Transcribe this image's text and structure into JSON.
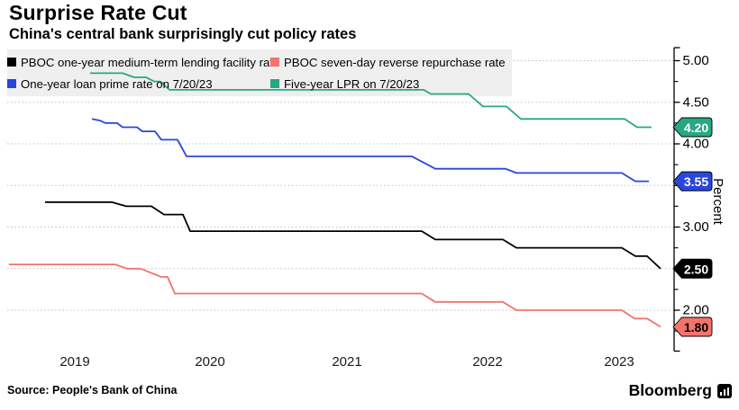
{
  "header": {
    "title": "Surprise Rate Cut",
    "subtitle": "China's central bank surprisingly cut policy rates"
  },
  "footer": {
    "source": "Source: People's Bank of China",
    "brand": "Bloomberg"
  },
  "chart_data": {
    "type": "line",
    "title": "Surprise Rate Cut",
    "subtitle": "China's central bank surprisingly cut policy rates",
    "ylabel": "Percent",
    "ylim": [
      1.5,
      5.15
    ],
    "grid": "dotted horizontal gridlines at major ticks",
    "legend_position": "top-left, two columns, gray box",
    "y_ticks_major": [
      5.0,
      4.5,
      4.0,
      3.5,
      3.0,
      2.5,
      2.0
    ],
    "y_ticks_minor": [
      4.75,
      4.25,
      3.75,
      3.25,
      2.75,
      2.25,
      1.75
    ],
    "x_tick_labels": [
      {
        "label": "2019",
        "x": 83
      },
      {
        "label": "2020",
        "x": 233
      },
      {
        "label": "2021",
        "x": 385
      },
      {
        "label": "2022",
        "x": 541
      },
      {
        "label": "2023",
        "x": 687
      }
    ],
    "series": [
      {
        "name": "PBOC one-year medium-term lending facility rate",
        "color": "#000000",
        "badge": {
          "label": "2.50",
          "text_color": "#ffffff"
        },
        "points": [
          [
            50,
            3.3
          ],
          [
            124,
            3.3
          ],
          [
            140,
            3.25
          ],
          [
            168,
            3.25
          ],
          [
            182,
            3.15
          ],
          [
            203,
            3.15
          ],
          [
            211,
            2.95
          ],
          [
            468,
            2.95
          ],
          [
            483,
            2.85
          ],
          [
            558,
            2.85
          ],
          [
            573,
            2.75
          ],
          [
            690,
            2.75
          ],
          [
            705,
            2.65
          ],
          [
            718,
            2.65
          ],
          [
            733,
            2.5
          ]
        ]
      },
      {
        "name": "PBOC seven-day reverse repurchase rate",
        "color": "#F3736D",
        "badge": {
          "label": "1.80",
          "text_color": "#000000"
        },
        "points": [
          [
            10,
            2.55
          ],
          [
            128,
            2.55
          ],
          [
            141,
            2.5
          ],
          [
            156,
            2.5
          ],
          [
            179,
            2.4
          ],
          [
            186,
            2.4
          ],
          [
            194,
            2.2
          ],
          [
            468,
            2.2
          ],
          [
            483,
            2.1
          ],
          [
            558,
            2.1
          ],
          [
            573,
            2.0
          ],
          [
            690,
            2.0
          ],
          [
            704,
            1.9
          ],
          [
            718,
            1.9
          ],
          [
            733,
            1.8
          ]
        ]
      },
      {
        "name": "One-year loan prime rate on 7/20/23",
        "color": "#2946DB",
        "badge": {
          "label": "3.55",
          "text_color": "#ffffff"
        },
        "points": [
          [
            102,
            4.3
          ],
          [
            111,
            4.28
          ],
          [
            117,
            4.25
          ],
          [
            130,
            4.25
          ],
          [
            136,
            4.2
          ],
          [
            152,
            4.2
          ],
          [
            158,
            4.15
          ],
          [
            172,
            4.15
          ],
          [
            179,
            4.05
          ],
          [
            197,
            4.05
          ],
          [
            207,
            3.85
          ],
          [
            457,
            3.85
          ],
          [
            483,
            3.7
          ],
          [
            561,
            3.7
          ],
          [
            573,
            3.65
          ],
          [
            690,
            3.65
          ],
          [
            705,
            3.55
          ],
          [
            720,
            3.55
          ]
        ]
      },
      {
        "name": "Five-year LPR on 7/20/23",
        "color": "#27A883",
        "badge": {
          "label": "4.20",
          "text_color": "#ffffff"
        },
        "points": [
          [
            100,
            4.85
          ],
          [
            136,
            4.85
          ],
          [
            149,
            4.8
          ],
          [
            162,
            4.8
          ],
          [
            171,
            4.75
          ],
          [
            178,
            4.75
          ],
          [
            188,
            4.65
          ],
          [
            470,
            4.65
          ],
          [
            478,
            4.6
          ],
          [
            520,
            4.6
          ],
          [
            536,
            4.45
          ],
          [
            562,
            4.45
          ],
          [
            578,
            4.3
          ],
          [
            693,
            4.3
          ],
          [
            707,
            4.2
          ],
          [
            723,
            4.2
          ]
        ]
      }
    ]
  }
}
